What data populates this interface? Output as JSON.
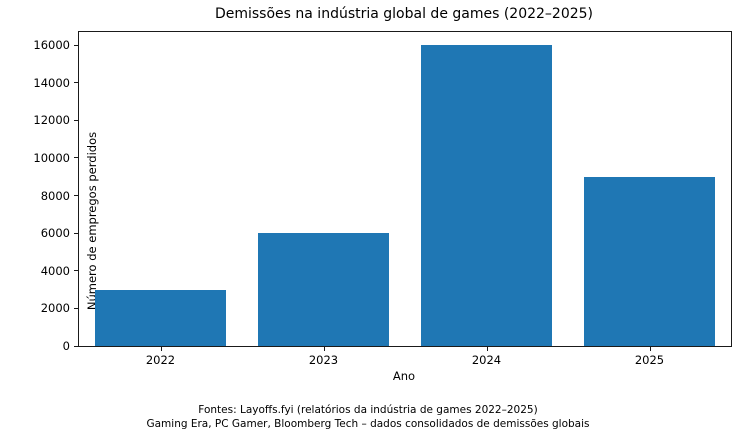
{
  "chart_data": {
    "type": "bar",
    "title": "Demissões na indústria global de games (2022–2025)",
    "categories": [
      "2022",
      "2023",
      "2024",
      "2025"
    ],
    "values": [
      3000,
      6000,
      16000,
      9000
    ],
    "xlabel": "Ano",
    "ylabel": "Número de empregos perdidos",
    "ylim": [
      0,
      16700
    ],
    "yticks": [
      0,
      2000,
      4000,
      6000,
      8000,
      10000,
      12000,
      14000,
      16000
    ],
    "bar_color": "#1f77b4",
    "bar_width_fraction": 0.8,
    "grid": false,
    "legend": "none",
    "frame": "full-box"
  },
  "footer": {
    "line1": "Fontes: Layoffs.fyi (relatórios da indústria de games 2022–2025)",
    "line2": "Gaming Era, PC Gamer, Bloomberg Tech – dados consolidados de demissões globais"
  }
}
